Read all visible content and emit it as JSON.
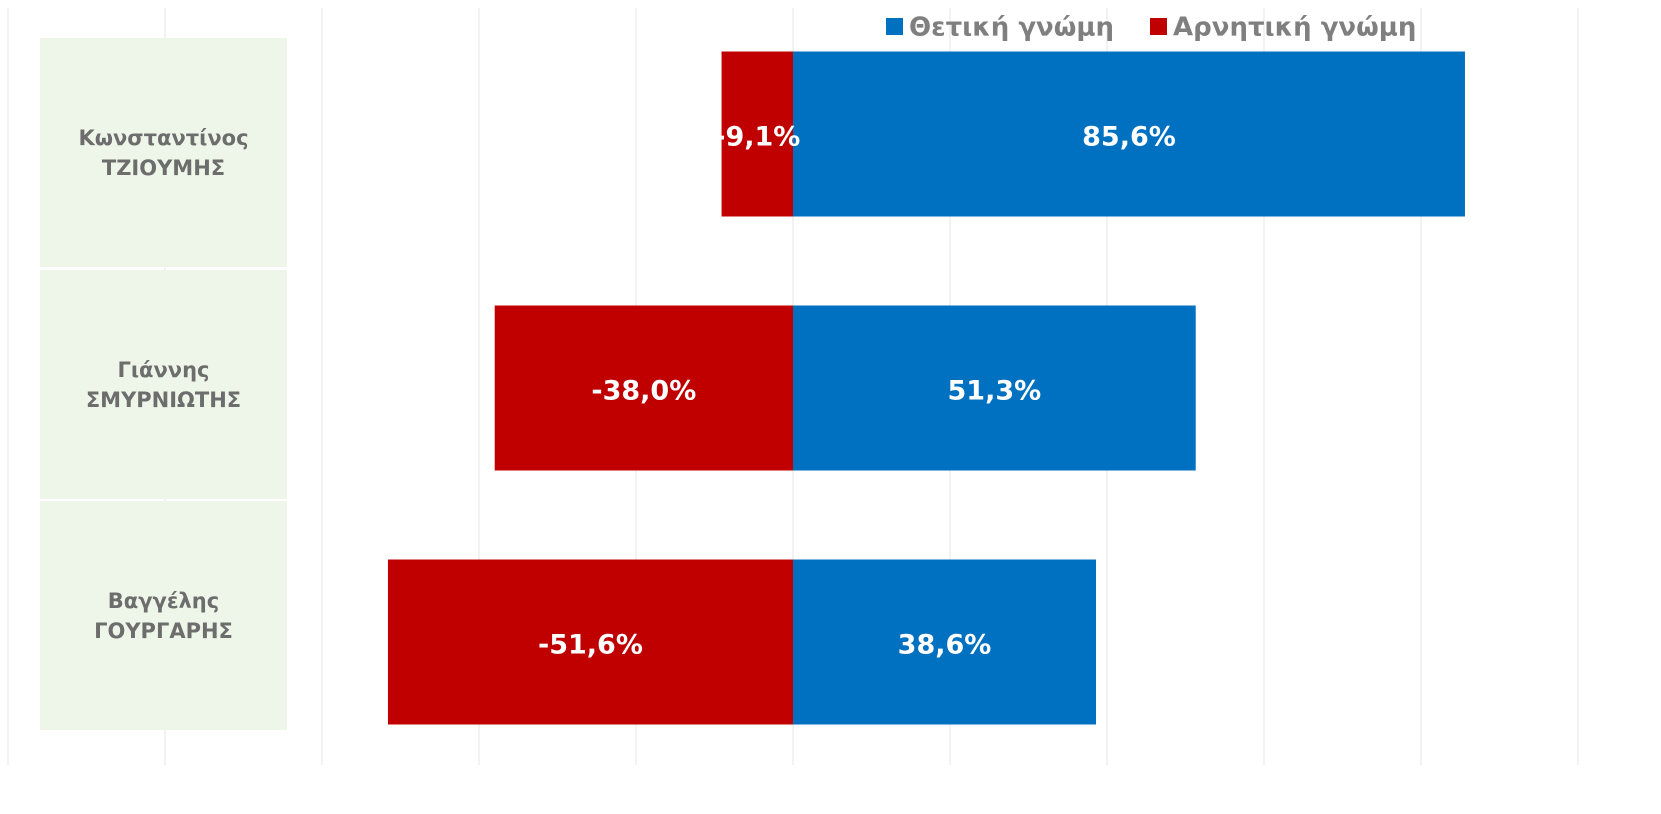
{
  "chart_data": {
    "type": "diverging_bar",
    "categories": [
      "Κωνσταντίνος\nΤΖΙΟΥΜΗΣ",
      "Γιάννης\nΣΜΥΡΝΙΩΤΗΣ",
      "Βαγγέλης\nΓΟΥΡΓΑΡΗΣ"
    ],
    "series": [
      {
        "name": "Θετική γνώμη",
        "color": "#0070c0",
        "values": [
          85.6,
          51.3,
          38.6
        ],
        "value_labels": [
          "85,6%",
          "51,3%",
          "38,6%"
        ]
      },
      {
        "name": "Αρνητική γνώμη",
        "color": "#c00000",
        "values": [
          -9.1,
          -38.0,
          -51.6
        ],
        "value_labels": [
          "-9,1%",
          "-38,0%",
          "-51,6%"
        ]
      }
    ],
    "xlim": [
      -100,
      110
    ],
    "xticks": [
      -100,
      -80,
      -60,
      -40,
      -20,
      0,
      20,
      40,
      60,
      80,
      100
    ],
    "grid": true,
    "legend": "top-right"
  }
}
